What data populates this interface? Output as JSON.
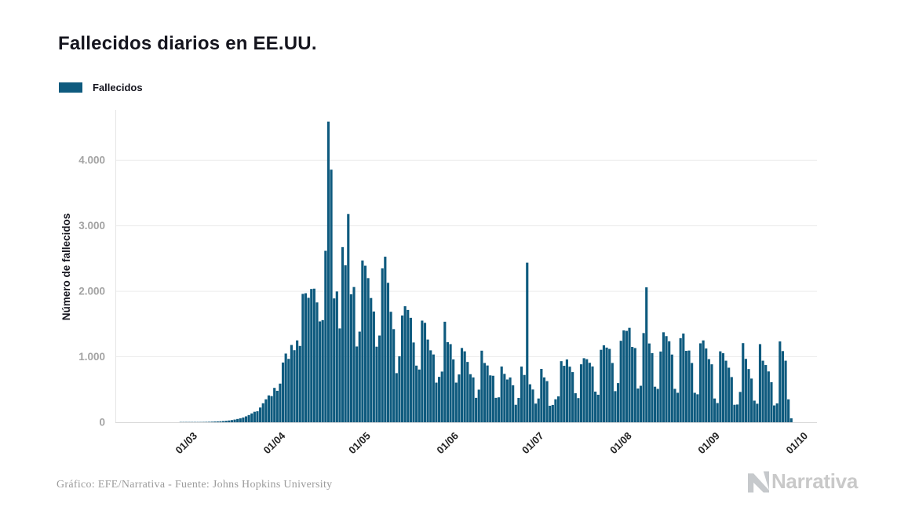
{
  "title": "Fallecidos diarios en EE.UU.",
  "legend": {
    "label": "Fallecidos",
    "color": "#0e5a7e"
  },
  "footer": {
    "credit": "Gráfico: EFE/Narrativa - Fuente: Johns Hopkins University"
  },
  "watermark": {
    "text": "Narrativa"
  },
  "chart_data": {
    "type": "bar",
    "title": "Fallecidos diarios en EE.UU.",
    "series_name": "Fallecidos",
    "xlabel": "",
    "ylabel": "Número de fallecidos",
    "bar_color": "#0e5a7e",
    "grid": "horizontal",
    "legend_position": "top-left",
    "ylim": [
      0,
      4800
    ],
    "y_ticks": [
      {
        "label": "0",
        "value": 0
      },
      {
        "label": "1.000",
        "value": 1000
      },
      {
        "label": "2.000",
        "value": 2000
      },
      {
        "label": "3.000",
        "value": 3000
      },
      {
        "label": "4.000",
        "value": 4000
      }
    ],
    "x_ticks": [
      {
        "label": "01/03",
        "day": 6
      },
      {
        "label": "01/04",
        "day": 37
      },
      {
        "label": "01/05",
        "day": 67
      },
      {
        "label": "01/06",
        "day": 98
      },
      {
        "label": "01/07",
        "day": 128
      },
      {
        "label": "01/08",
        "day": 159
      },
      {
        "label": "01/09",
        "day": 190
      },
      {
        "label": "01/10",
        "day": 221
      }
    ],
    "start_date": "24/02/2020",
    "end_date": "26/09/2020",
    "values": [
      1,
      1,
      1,
      2,
      2,
      3,
      3,
      4,
      5,
      6,
      7,
      9,
      11,
      13,
      15,
      18,
      22,
      27,
      33,
      41,
      50,
      60,
      73,
      90,
      110,
      135,
      160,
      168,
      225,
      290,
      350,
      410,
      400,
      525,
      480,
      590,
      912,
      1049,
      968,
      1180,
      1100,
      1250,
      1165,
      1960,
      1970,
      1900,
      2035,
      2040,
      1830,
      1540,
      1560,
      2618,
      4591,
      3857,
      1891,
      1997,
      1433,
      2674,
      2396,
      3179,
      1954,
      2065,
      1157,
      1384,
      2470,
      2390,
      2201,
      1897,
      1691,
      1154,
      1324,
      2350,
      2528,
      2129,
      1687,
      1422,
      750,
      1008,
      1630,
      1772,
      1715,
      1595,
      1218,
      865,
      805,
      1552,
      1518,
      1263,
      1098,
      1035,
      605,
      693,
      774,
      1535,
      1223,
      1193,
      960,
      605,
      730,
      1134,
      1083,
      921,
      734,
      685,
      373,
      498,
      1093,
      905,
      867,
      716,
      710,
      373,
      381,
      851,
      739,
      653,
      684,
      565,
      267,
      372,
      850,
      722,
      2437,
      580,
      500,
      285,
      363,
      815,
      685,
      628,
      252,
      265,
      351,
      395,
      933,
      862,
      959,
      849,
      766,
      443,
      369,
      885,
      978,
      963,
      908,
      852,
      468,
      420,
      1106,
      1175,
      1140,
      1120,
      905,
      475,
      598,
      1244,
      1403,
      1395,
      1442,
      1150,
      1133,
      515,
      557,
      1362,
      2060,
      1203,
      1056,
      543,
      510,
      1080,
      1374,
      1315,
      1237,
      1034,
      510,
      450,
      1284,
      1355,
      1090,
      1095,
      905,
      450,
      427,
      1205,
      1250,
      1127,
      964,
      885,
      363,
      293,
      1083,
      1054,
      940,
      833,
      690,
      267,
      271,
      463,
      1208,
      968,
      813,
      667,
      330,
      283,
      1193,
      940,
      874,
      776,
      612,
      257,
      288,
      1234,
      1087,
      940,
      350,
      60
    ]
  }
}
